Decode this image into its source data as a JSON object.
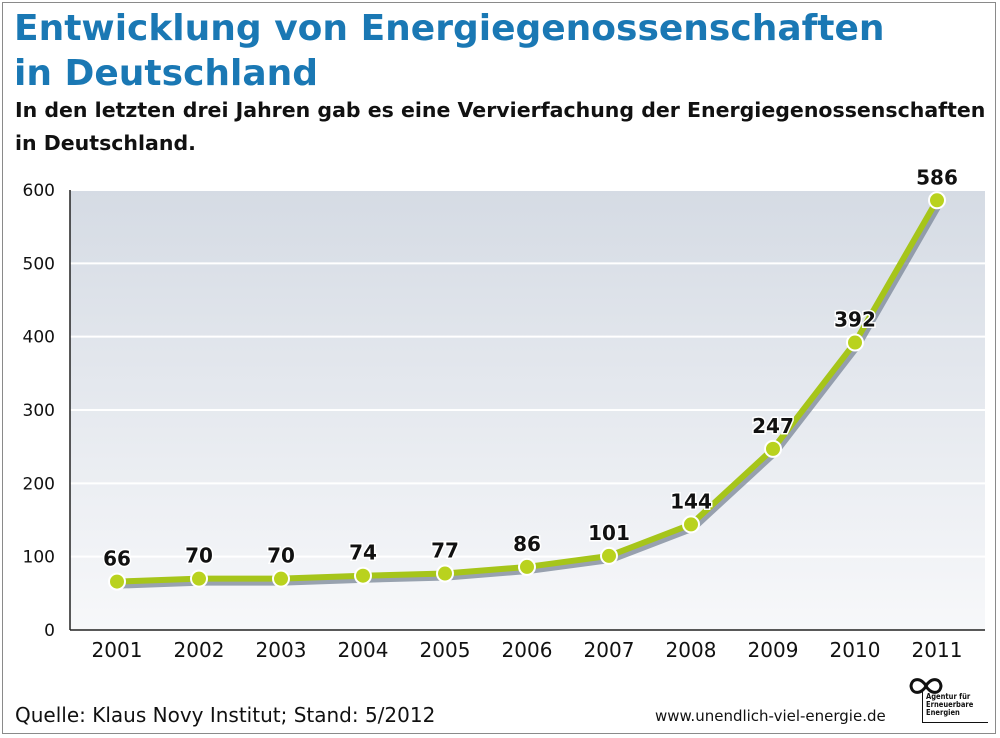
{
  "header": {
    "title": "Entwicklung von Energiegenossenschaften in Deutschland",
    "subtitle": "In den letzten drei Jahren gab es eine Vervierfachung der Energiegenossenschaften in Deutschland."
  },
  "footer": {
    "source": "Quelle: Klaus Novy Institut; Stand: 5/2012",
    "website": "www.unendlich-viel-energie.de",
    "logo_lines": [
      "Agentur für",
      "Erneuerbare",
      "Energien"
    ],
    "logo_icon": "infinity-icon"
  },
  "colors": {
    "title": "#1a78b4",
    "line": "#a6c51a",
    "marker": "#b9d21e",
    "plot_bg_top": "#d5dbe4",
    "plot_bg_bottom": "#f7f8fa"
  },
  "chart_data": {
    "type": "line",
    "title": "Entwicklung von Energiegenossenschaften in Deutschland",
    "subtitle": "In den letzten drei Jahren gab es eine Vervierfachung der Energiegenossenschaften in Deutschland.",
    "xlabel": "",
    "ylabel": "",
    "categories": [
      "2001",
      "2002",
      "2003",
      "2004",
      "2005",
      "2006",
      "2007",
      "2008",
      "2009",
      "2010",
      "2011"
    ],
    "series": [
      {
        "values": [
          66,
          70,
          70,
          74,
          77,
          86,
          101,
          144,
          247,
          392,
          586
        ]
      }
    ],
    "y_ticks": [
      0,
      100,
      200,
      300,
      400,
      500,
      600
    ],
    "ylim": [
      0,
      600
    ],
    "grid": true,
    "data_labels": true,
    "legend": "none"
  }
}
